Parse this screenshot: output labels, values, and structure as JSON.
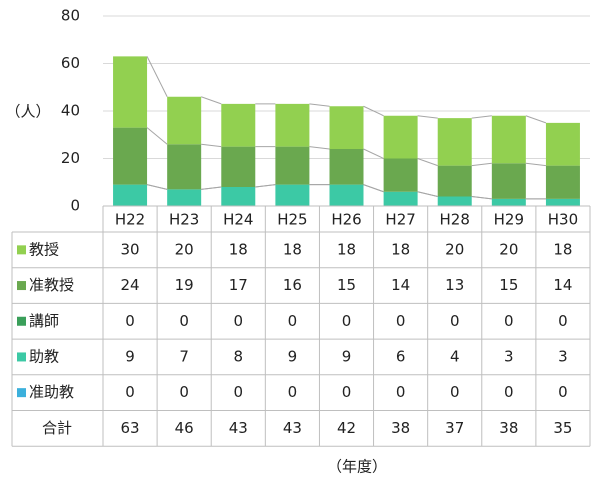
{
  "chart_data": {
    "type": "bar",
    "stacked": true,
    "ylabel": "（人）",
    "xlabel": "（年度）",
    "categories": [
      "H22",
      "H23",
      "H24",
      "H25",
      "H26",
      "H27",
      "H28",
      "H29",
      "H30"
    ],
    "series": [
      {
        "name": "教授",
        "color": "#92d050",
        "values": [
          30,
          20,
          18,
          18,
          18,
          18,
          20,
          20,
          18
        ]
      },
      {
        "name": "准教授",
        "color": "#6aa84f",
        "values": [
          24,
          19,
          17,
          16,
          15,
          14,
          13,
          15,
          14
        ]
      },
      {
        "name": "講師",
        "color": "#3a9f5a",
        "values": [
          0,
          0,
          0,
          0,
          0,
          0,
          0,
          0,
          0
        ]
      },
      {
        "name": "助教",
        "color": "#3cc9a5",
        "values": [
          9,
          7,
          8,
          9,
          9,
          6,
          4,
          3,
          3
        ]
      },
      {
        "name": "准助教",
        "color": "#3bb0dc",
        "values": [
          0,
          0,
          0,
          0,
          0,
          0,
          0,
          0,
          0
        ]
      }
    ],
    "total": {
      "name": "合計",
      "values": [
        63,
        46,
        43,
        43,
        42,
        38,
        37,
        38,
        35
      ]
    },
    "ylim": [
      0,
      80
    ],
    "yticks": [
      0,
      20,
      40,
      60,
      80
    ],
    "grid": true
  }
}
